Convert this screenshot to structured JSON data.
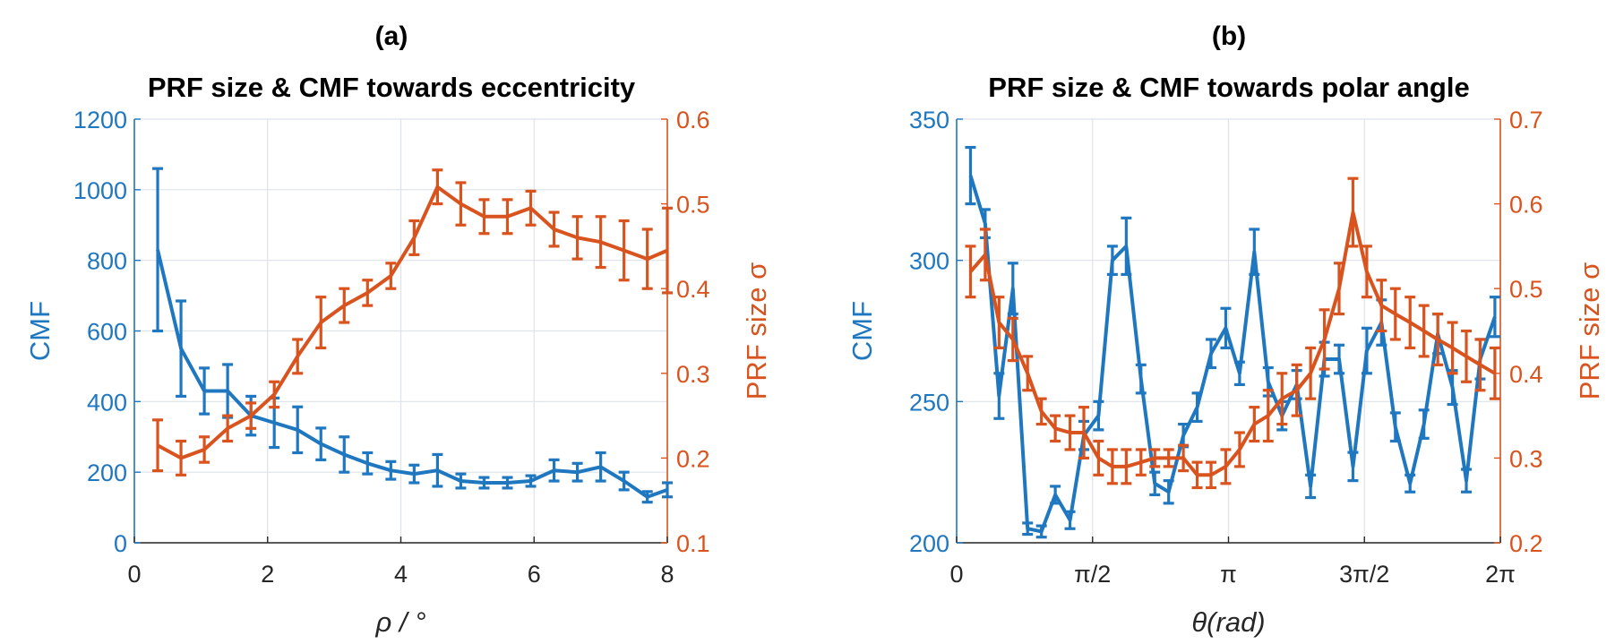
{
  "colors": {
    "left": "#1f77c0",
    "right": "#d9531e",
    "axis": "#262626"
  },
  "chart_data": [
    {
      "type": "line",
      "panel_label": "(a)",
      "title": "PRF size & CMF towards eccentricity",
      "xlabel": "ρ / °",
      "ylabel_left": "CMF",
      "ylabel_right": "PRF size σ",
      "xlim": [
        0,
        8
      ],
      "ylim_left": [
        0,
        1200
      ],
      "ylim_right": [
        0.1,
        0.6
      ],
      "xticks": [
        0,
        2,
        4,
        6,
        8
      ],
      "xtick_labels": [
        "0",
        "2",
        "4",
        "6",
        "8"
      ],
      "yticks_left": [
        0,
        200,
        400,
        600,
        800,
        1000,
        1200
      ],
      "ytick_labels_left": [
        "0",
        "200",
        "400",
        "600",
        "800",
        "1000",
        "1200"
      ],
      "yticks_right": [
        0.1,
        0.2,
        0.3,
        0.4,
        0.5,
        0.6
      ],
      "ytick_labels_right": [
        "0.1",
        "0.2",
        "0.3",
        "0.4",
        "0.5",
        "0.6"
      ],
      "grid": true,
      "series": [
        {
          "name": "CMF",
          "axis": "left",
          "x": [
            0.35,
            0.7,
            1.05,
            1.4,
            1.75,
            2.1,
            2.45,
            2.8,
            3.15,
            3.5,
            3.85,
            4.2,
            4.55,
            4.9,
            5.25,
            5.6,
            5.95,
            6.3,
            6.65,
            7.0,
            7.35,
            7.7,
            8.0
          ],
          "y": [
            830,
            550,
            430,
            430,
            360,
            340,
            320,
            280,
            250,
            225,
            205,
            195,
            205,
            175,
            170,
            170,
            175,
            205,
            200,
            215,
            175,
            130,
            150
          ],
          "err": [
            230,
            135,
            65,
            75,
            55,
            70,
            65,
            45,
            50,
            30,
            25,
            25,
            45,
            20,
            15,
            15,
            15,
            30,
            25,
            40,
            25,
            15,
            20
          ]
        },
        {
          "name": "PRF size σ",
          "axis": "right",
          "x": [
            0.35,
            0.7,
            1.05,
            1.4,
            1.75,
            2.1,
            2.45,
            2.8,
            3.15,
            3.5,
            3.85,
            4.2,
            4.55,
            4.9,
            5.25,
            5.6,
            5.95,
            6.3,
            6.65,
            7.0,
            7.35,
            7.7,
            8.0
          ],
          "y": [
            0.215,
            0.2,
            0.21,
            0.235,
            0.25,
            0.275,
            0.32,
            0.36,
            0.38,
            0.395,
            0.415,
            0.46,
            0.52,
            0.5,
            0.485,
            0.485,
            0.495,
            0.47,
            0.46,
            0.455,
            0.445,
            0.435,
            0.445
          ],
          "err": [
            0.03,
            0.02,
            0.015,
            0.015,
            0.015,
            0.015,
            0.02,
            0.03,
            0.02,
            0.015,
            0.015,
            0.02,
            0.02,
            0.025,
            0.02,
            0.02,
            0.02,
            0.02,
            0.025,
            0.03,
            0.035,
            0.035,
            0.05
          ]
        }
      ]
    },
    {
      "type": "line",
      "panel_label": "(b)",
      "title": "PRF size & CMF towards polar angle",
      "xlabel": "θ(rad)",
      "ylabel_left": "CMF",
      "ylabel_right": "PRF size σ",
      "xlim": [
        0,
        6.2832
      ],
      "ylim_left": [
        200,
        350
      ],
      "ylim_right": [
        0.2,
        0.7
      ],
      "xticks": [
        0,
        1.5708,
        3.1416,
        4.7124,
        6.2832
      ],
      "xtick_labels": [
        "0",
        "π/2",
        "π",
        "3π/2",
        "2π"
      ],
      "yticks_left": [
        200,
        250,
        300,
        350
      ],
      "ytick_labels_left": [
        "200",
        "250",
        "300",
        "350"
      ],
      "yticks_right": [
        0.2,
        0.3,
        0.4,
        0.5,
        0.6,
        0.7
      ],
      "ytick_labels_right": [
        "0.2",
        "0.3",
        "0.4",
        "0.5",
        "0.6",
        "0.7"
      ],
      "grid": true,
      "series": [
        {
          "name": "CMF",
          "axis": "left",
          "x": [
            0.16,
            0.33,
            0.49,
            0.65,
            0.82,
            0.98,
            1.14,
            1.31,
            1.47,
            1.64,
            1.8,
            1.96,
            2.13,
            2.29,
            2.45,
            2.62,
            2.78,
            2.94,
            3.11,
            3.27,
            3.44,
            3.6,
            3.76,
            3.93,
            4.09,
            4.25,
            4.42,
            4.58,
            4.74,
            4.91,
            5.07,
            5.24,
            5.4,
            5.56,
            5.73,
            5.89,
            6.05,
            6.22
          ],
          "y": [
            330,
            313,
            252,
            290,
            205,
            204,
            217,
            208,
            238,
            245,
            300,
            305,
            258,
            221,
            218,
            238,
            248,
            267,
            276,
            260,
            303,
            257,
            245,
            256,
            220,
            265,
            265,
            227,
            268,
            278,
            241,
            221,
            242,
            274,
            255,
            222,
            265,
            280
          ],
          "err": [
            10,
            5,
            8,
            9,
            2,
            2,
            3,
            3,
            5,
            5,
            5,
            10,
            5,
            4,
            4,
            4,
            5,
            5,
            7,
            4,
            8,
            5,
            5,
            5,
            4,
            6,
            5,
            5,
            8,
            8,
            5,
            3,
            5,
            7,
            6,
            4,
            7,
            7
          ]
        },
        {
          "name": "PRF size σ",
          "axis": "right",
          "x": [
            0.16,
            0.33,
            0.49,
            0.65,
            0.82,
            0.98,
            1.14,
            1.31,
            1.47,
            1.64,
            1.8,
            1.96,
            2.13,
            2.29,
            2.45,
            2.62,
            2.78,
            2.94,
            3.11,
            3.27,
            3.44,
            3.6,
            3.76,
            3.93,
            4.09,
            4.25,
            4.42,
            4.58,
            4.74,
            4.91,
            5.07,
            5.24,
            5.4,
            5.56,
            5.73,
            5.89,
            6.05,
            6.22
          ],
          "y": [
            0.52,
            0.54,
            0.46,
            0.44,
            0.4,
            0.355,
            0.335,
            0.33,
            0.33,
            0.3,
            0.29,
            0.29,
            0.295,
            0.3,
            0.3,
            0.3,
            0.28,
            0.28,
            0.29,
            0.31,
            0.34,
            0.35,
            0.37,
            0.38,
            0.4,
            0.44,
            0.5,
            0.59,
            0.52,
            0.48,
            0.47,
            0.46,
            0.45,
            0.44,
            0.43,
            0.42,
            0.41,
            0.4
          ],
          "err": [
            0.03,
            0.03,
            0.03,
            0.025,
            0.02,
            0.015,
            0.015,
            0.02,
            0.03,
            0.02,
            0.02,
            0.02,
            0.015,
            0.01,
            0.01,
            0.015,
            0.015,
            0.015,
            0.02,
            0.02,
            0.02,
            0.03,
            0.03,
            0.03,
            0.03,
            0.035,
            0.03,
            0.04,
            0.03,
            0.03,
            0.03,
            0.03,
            0.03,
            0.03,
            0.03,
            0.03,
            0.03,
            0.03
          ]
        }
      ]
    }
  ]
}
